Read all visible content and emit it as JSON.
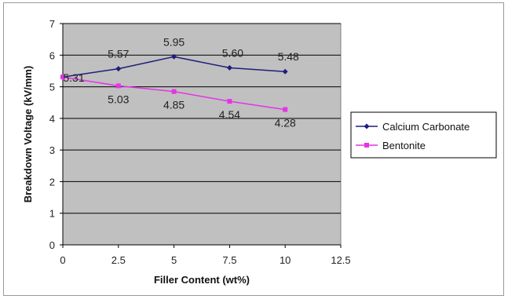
{
  "chart_data": {
    "type": "line",
    "title": "",
    "xlabel": "Filler Content (wt%)",
    "ylabel": "Breakdown Voltage (kV/mm)",
    "xlim": [
      0,
      12.5
    ],
    "ylim": [
      0,
      7
    ],
    "xticks": [
      0,
      2.5,
      5,
      7.5,
      10,
      12.5
    ],
    "yticks": [
      0,
      1,
      2,
      3,
      4,
      5,
      6,
      7
    ],
    "grid": "horizontal",
    "plot_background": "#c0c0c0",
    "legend_position": "right",
    "series": [
      {
        "name": "Calcium Carbonate",
        "color": "#1f1f7a",
        "marker": "diamond",
        "x": [
          0,
          2.5,
          5,
          7.5,
          10
        ],
        "y": [
          5.31,
          5.57,
          5.95,
          5.6,
          5.48
        ],
        "labels": [
          "5.31",
          "5.57",
          "5.95",
          "5.60",
          "5.48"
        ]
      },
      {
        "name": "Bentonite",
        "color": "#e633e6",
        "marker": "square",
        "x": [
          0,
          2.5,
          5,
          7.5,
          10
        ],
        "y": [
          5.31,
          5.03,
          4.85,
          4.54,
          4.28
        ],
        "labels": [
          "",
          "5.03",
          "4.85",
          "4.54",
          "4.28"
        ]
      }
    ]
  }
}
